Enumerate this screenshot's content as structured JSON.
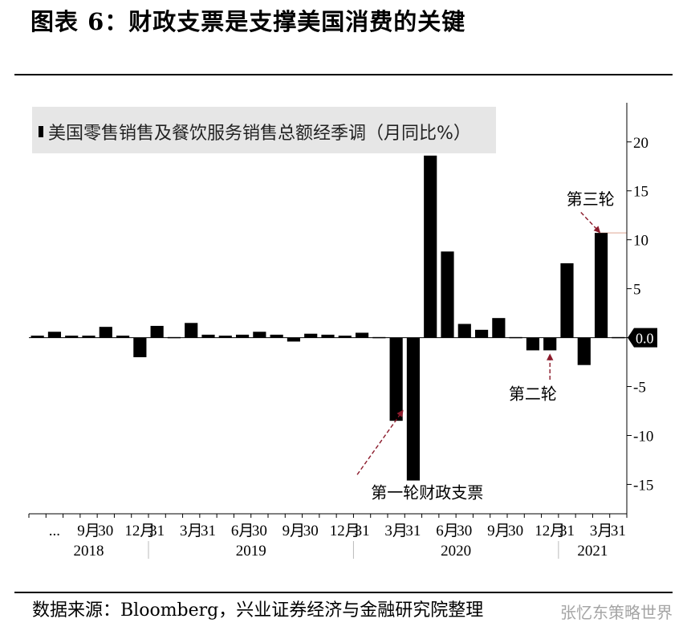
{
  "title": "图表 6：财政支票是支撑美国消费的关键",
  "source": "数据来源：Bloomberg，兴业证券经济与金融研究院整理",
  "watermark": "张忆东策略世界",
  "chart_data": {
    "type": "bar",
    "legend": "美国零售销售及餐饮服务销售总额经季调（月同比%）",
    "y_axis_side": "right",
    "ylim": [
      -18,
      24
    ],
    "yticks": [
      20,
      15,
      10,
      5,
      0,
      -5,
      -10,
      -15
    ],
    "ytick_labels": [
      "20",
      "15",
      "10",
      "5",
      "",
      "-5",
      "-10",
      "-15"
    ],
    "last_value_label": "0.0",
    "last_value": 0.0,
    "values": [
      0.2,
      0.6,
      0.2,
      0.2,
      1.1,
      0.2,
      -2.0,
      1.2,
      0.1,
      1.5,
      0.3,
      0.2,
      0.3,
      0.6,
      0.3,
      -0.4,
      0.4,
      0.3,
      0.2,
      0.5,
      0.1,
      -8.5,
      -14.6,
      18.6,
      8.8,
      1.4,
      0.8,
      2.0,
      0.1,
      -1.3,
      -1.3,
      7.6,
      -2.8,
      10.7,
      0.0
    ],
    "xtick_labels": [
      {
        "index": 1,
        "label": "..."
      },
      {
        "index": 3,
        "label": "9月"
      },
      {
        "index": 4,
        "label": "30"
      },
      {
        "index": 6,
        "label": "12月"
      },
      {
        "index": 7,
        "label": "31"
      },
      {
        "index": 9,
        "label": "3月"
      },
      {
        "index": 10,
        "label": "31"
      },
      {
        "index": 12,
        "label": "6月"
      },
      {
        "index": 13,
        "label": "30"
      },
      {
        "index": 15,
        "label": "9月"
      },
      {
        "index": 16,
        "label": "30"
      },
      {
        "index": 18,
        "label": "12月"
      },
      {
        "index": 19,
        "label": "31"
      },
      {
        "index": 21,
        "label": "3月"
      },
      {
        "index": 22,
        "label": "31"
      },
      {
        "index": 24,
        "label": "6月"
      },
      {
        "index": 25,
        "label": "30"
      },
      {
        "index": 27,
        "label": "9月"
      },
      {
        "index": 28,
        "label": "30"
      },
      {
        "index": 30,
        "label": "12月"
      },
      {
        "index": 31,
        "label": "31"
      },
      {
        "index": 33,
        "label": "3月"
      },
      {
        "index": 34,
        "label": "31"
      }
    ],
    "years": [
      {
        "label": "2018",
        "from": 0,
        "to": 6
      },
      {
        "label": "2019",
        "from": 7,
        "to": 18
      },
      {
        "label": "2020",
        "from": 19,
        "to": 30
      },
      {
        "label": "2021",
        "from": 31,
        "to": 34
      }
    ],
    "reference_line_value": 10.7,
    "annotations": [
      {
        "text": "第一轮财政支票",
        "target_index": 21,
        "target_value": -7.0
      },
      {
        "text": "第二轮",
        "target_index": 30,
        "target_value": -1.6
      },
      {
        "text": "第三轮",
        "target_index": 33,
        "target_value": 10.7
      }
    ],
    "colors": {
      "bar": "#000000",
      "annotation": "#8b1a2b",
      "reference_line": "#e6b8a8",
      "legend_bg": "#e6e6e6"
    }
  }
}
